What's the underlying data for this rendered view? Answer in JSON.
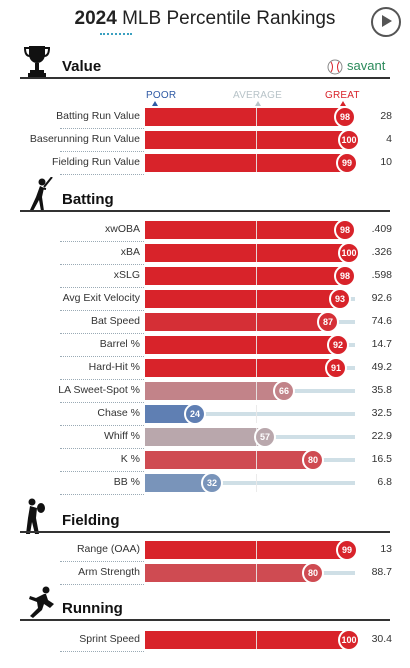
{
  "header": {
    "year": "2024",
    "title": " MLB Percentile Rankings"
  },
  "brand": {
    "name": "savant"
  },
  "scale": {
    "poor": "POOR",
    "average": "AVERAGE",
    "great": "GREAT"
  },
  "sections": [
    {
      "id": "value",
      "title": "Value",
      "icon": "trophy-icon",
      "rows": [
        {
          "label": "Batting Run Value",
          "percentile": 98,
          "value": "28"
        },
        {
          "label": "Baserunning Run Value",
          "percentile": 100,
          "value": "4"
        },
        {
          "label": "Fielding Run Value",
          "percentile": 99,
          "value": "10"
        }
      ]
    },
    {
      "id": "batting",
      "title": "Batting",
      "icon": "batter-icon",
      "rows": [
        {
          "label": "xwOBA",
          "percentile": 98,
          "value": ".409"
        },
        {
          "label": "xBA",
          "percentile": 100,
          "value": ".326"
        },
        {
          "label": "xSLG",
          "percentile": 98,
          "value": ".598"
        },
        {
          "label": "Avg Exit Velocity",
          "percentile": 93,
          "value": "92.6"
        },
        {
          "label": "Bat Speed",
          "percentile": 87,
          "value": "74.6"
        },
        {
          "label": "Barrel %",
          "percentile": 92,
          "value": "14.7"
        },
        {
          "label": "Hard-Hit %",
          "percentile": 91,
          "value": "49.2"
        },
        {
          "label": "LA Sweet-Spot %",
          "percentile": 66,
          "value": "35.8"
        },
        {
          "label": "Chase %",
          "percentile": 24,
          "value": "32.5"
        },
        {
          "label": "Whiff %",
          "percentile": 57,
          "value": "22.9"
        },
        {
          "label": "K %",
          "percentile": 80,
          "value": "16.5"
        },
        {
          "label": "BB %",
          "percentile": 32,
          "value": "6.8"
        }
      ]
    },
    {
      "id": "fielding",
      "title": "Fielding",
      "icon": "fielder-icon",
      "rows": [
        {
          "label": "Range (OAA)",
          "percentile": 99,
          "value": "13"
        },
        {
          "label": "Arm Strength",
          "percentile": 80,
          "value": "88.7"
        }
      ]
    },
    {
      "id": "running",
      "title": "Running",
      "icon": "runner-icon",
      "rows": [
        {
          "label": "Sprint Speed",
          "percentile": 100,
          "value": "30.4"
        }
      ]
    }
  ],
  "colors": {
    "great": "#d8232a",
    "poor": "#325aa8",
    "average": "#b3c3c8"
  }
}
